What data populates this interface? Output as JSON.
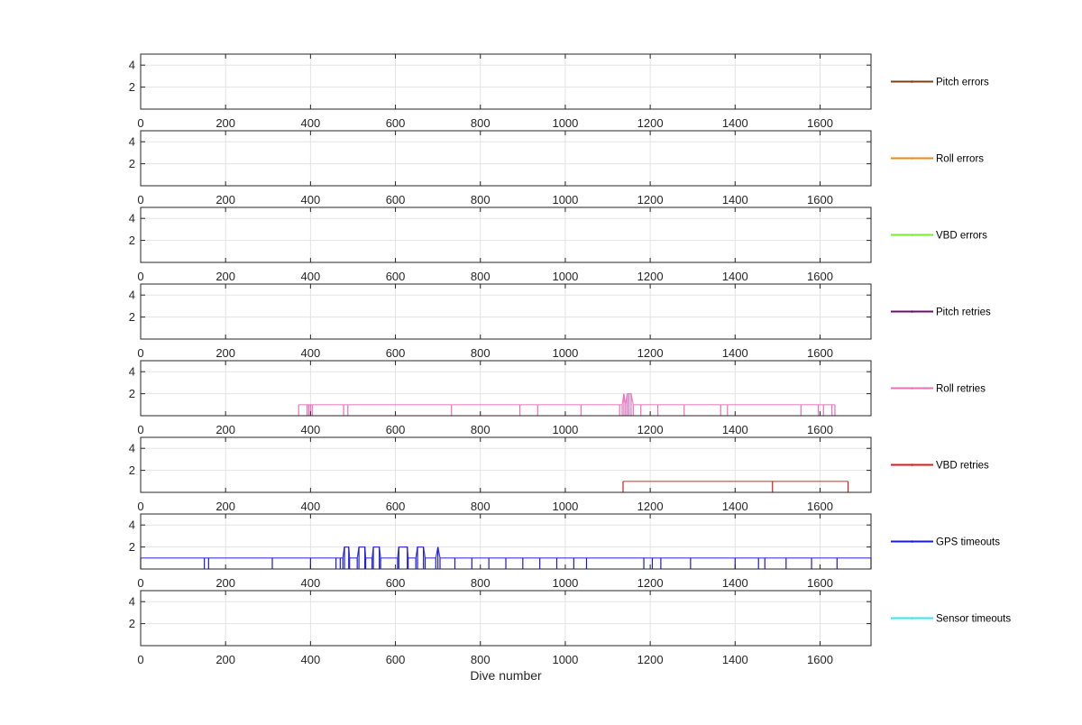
{
  "chart_data": {
    "type": "line",
    "xlabel": "Dive number",
    "xlim": [
      0,
      1720
    ],
    "ylim": [
      0,
      5
    ],
    "xticks": [
      0,
      200,
      400,
      600,
      800,
      1000,
      1200,
      1400,
      1600
    ],
    "yticks": [
      2,
      4
    ],
    "grid": true,
    "legend_placement": "right of each panel",
    "panels": [
      {
        "name": "Pitch errors",
        "color": "#7e3f12",
        "values": []
      },
      {
        "name": "Roll errors",
        "color": "#f28a0e",
        "values": []
      },
      {
        "name": "VBD errors",
        "color": "#76ec2f",
        "values": []
      },
      {
        "name": "Pitch retries",
        "color": "#6a0f6a",
        "values": []
      },
      {
        "name": "Roll retries",
        "color": "#e870b8",
        "values": [
          [
            372,
            1
          ],
          [
            392,
            1
          ],
          [
            396,
            1
          ],
          [
            400,
            1
          ],
          [
            404,
            1
          ],
          [
            478,
            1
          ],
          [
            488,
            1
          ],
          [
            732,
            1
          ],
          [
            893,
            1
          ],
          [
            935,
            1
          ],
          [
            1037,
            1
          ],
          [
            1128,
            1
          ],
          [
            1134,
            1
          ],
          [
            1138,
            2
          ],
          [
            1142,
            1
          ],
          [
            1146,
            2
          ],
          [
            1150,
            2
          ],
          [
            1155,
            2
          ],
          [
            1160,
            1
          ],
          [
            1178,
            1
          ],
          [
            1218,
            1
          ],
          [
            1280,
            1
          ],
          [
            1366,
            1
          ],
          [
            1382,
            1
          ],
          [
            1555,
            1
          ],
          [
            1596,
            1
          ],
          [
            1608,
            1
          ],
          [
            1628,
            1
          ],
          [
            1635,
            1
          ]
        ]
      },
      {
        "name": "VBD retries",
        "color": "#d21e1e",
        "values": [
          [
            1136,
            1
          ],
          [
            1488,
            1
          ],
          [
            1666,
            1
          ]
        ]
      },
      {
        "name": "GPS timeouts",
        "color": "#1a1adb",
        "values": [
          [
            0,
            1
          ],
          [
            150,
            1
          ],
          [
            160,
            1
          ],
          [
            310,
            1
          ],
          [
            400,
            1
          ],
          [
            460,
            1
          ],
          [
            470,
            1
          ],
          [
            476,
            1
          ],
          [
            480,
            2
          ],
          [
            490,
            2
          ],
          [
            492,
            1
          ],
          [
            510,
            1
          ],
          [
            514,
            2
          ],
          [
            528,
            2
          ],
          [
            530,
            1
          ],
          [
            545,
            1
          ],
          [
            548,
            2
          ],
          [
            562,
            2
          ],
          [
            565,
            1
          ],
          [
            605,
            1
          ],
          [
            608,
            2
          ],
          [
            628,
            2
          ],
          [
            630,
            1
          ],
          [
            648,
            1
          ],
          [
            652,
            2
          ],
          [
            666,
            2
          ],
          [
            670,
            1
          ],
          [
            695,
            1
          ],
          [
            700,
            2
          ],
          [
            705,
            1
          ],
          [
            740,
            1
          ],
          [
            780,
            1
          ],
          [
            820,
            1
          ],
          [
            860,
            1
          ],
          [
            900,
            1
          ],
          [
            940,
            1
          ],
          [
            980,
            1
          ],
          [
            1020,
            1
          ],
          [
            1050,
            1
          ],
          [
            1185,
            1
          ],
          [
            1205,
            1
          ],
          [
            1225,
            1
          ],
          [
            1295,
            1
          ],
          [
            1400,
            1
          ],
          [
            1455,
            1
          ],
          [
            1470,
            1
          ],
          [
            1520,
            1
          ],
          [
            1580,
            1
          ],
          [
            1640,
            1
          ],
          [
            1720,
            1
          ]
        ]
      },
      {
        "name": "Sensor timeouts",
        "color": "#33e6f0",
        "values": []
      }
    ]
  }
}
